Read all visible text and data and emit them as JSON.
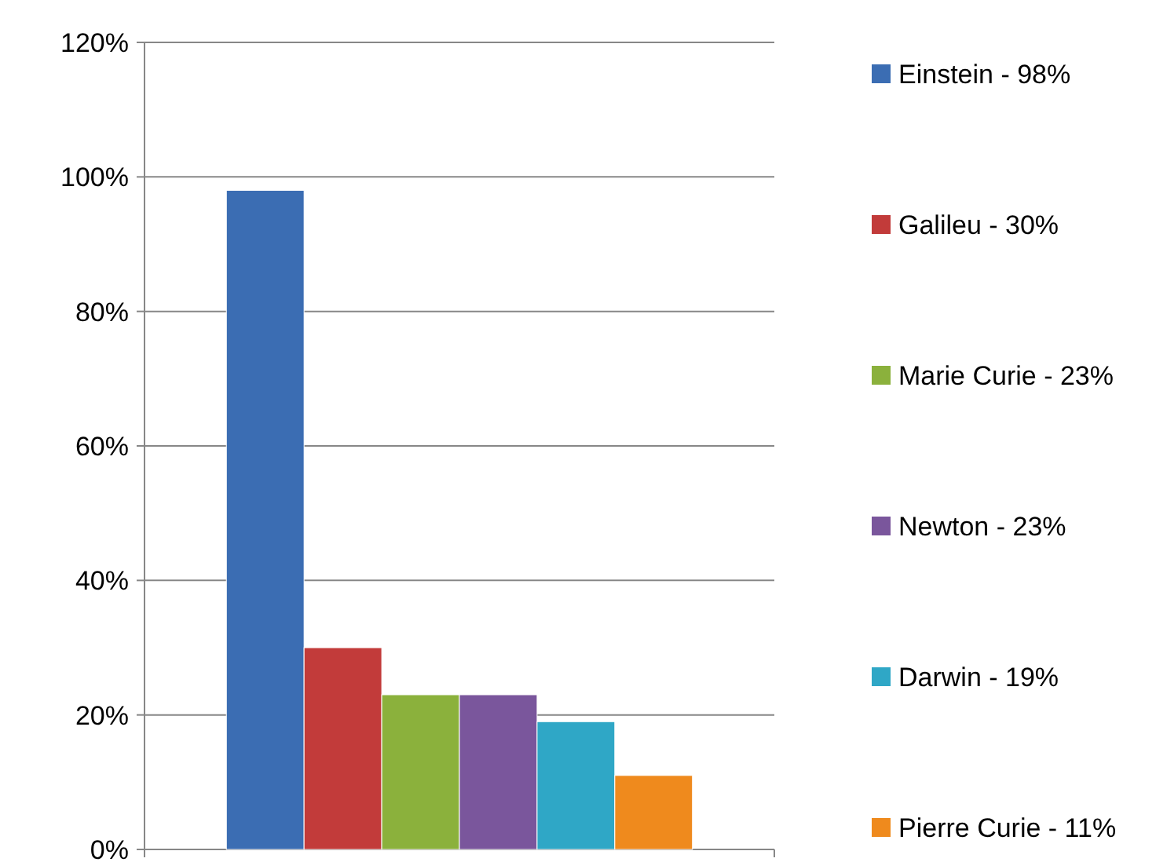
{
  "chart_data": {
    "type": "bar",
    "categories": [
      null
    ],
    "series": [
      {
        "name": "Einstein - 98%",
        "color": "#3b6db3",
        "values": [
          98
        ]
      },
      {
        "name": "Galileu - 30%",
        "color": "#c23b3a",
        "values": [
          30
        ]
      },
      {
        "name": "Marie Curie - 23%",
        "color": "#8bb13c",
        "values": [
          23
        ]
      },
      {
        "name": "Newton - 23%",
        "color": "#7a569c",
        "values": [
          23
        ]
      },
      {
        "name": "Darwin - 19%",
        "color": "#2fa7c6",
        "values": [
          19
        ]
      },
      {
        "name": "Pierre Curie - 11%",
        "color": "#ef8a1d",
        "values": [
          11
        ]
      }
    ],
    "ylim": [
      0,
      120
    ],
    "yticks": [
      {
        "value": 0,
        "label": "0%"
      },
      {
        "value": 20,
        "label": "20%"
      },
      {
        "value": 40,
        "label": "40%"
      },
      {
        "value": 60,
        "label": "60%"
      },
      {
        "value": 80,
        "label": "80%"
      },
      {
        "value": 100,
        "label": "100%"
      },
      {
        "value": 120,
        "label": "120%"
      }
    ],
    "grid": "y",
    "legend": "right"
  }
}
